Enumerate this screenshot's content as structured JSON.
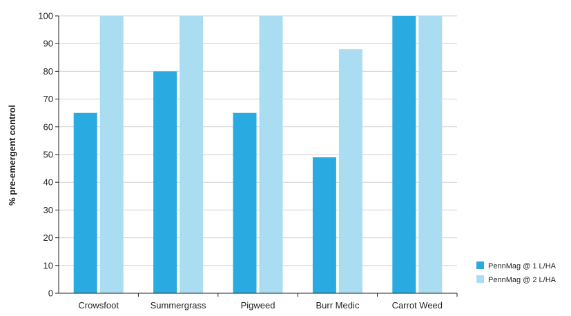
{
  "chart_data": {
    "type": "bar",
    "title": "",
    "xlabel": "",
    "ylabel": "% pre-emergent control",
    "categories": [
      "Crowsfoot",
      "Summergrass",
      "Pigweed",
      "Burr Medic",
      "Carrot Weed"
    ],
    "series": [
      {
        "name": "PennMag @ 1 L/HA",
        "color": "#29abe2",
        "values": [
          65,
          80,
          65,
          49,
          100
        ]
      },
      {
        "name": "PennMag @ 2 L/HA",
        "color": "#aadcf2",
        "values": [
          100,
          100,
          100,
          88,
          100
        ]
      }
    ],
    "ylim": [
      0,
      100
    ],
    "yticks": [
      0,
      10,
      20,
      30,
      40,
      50,
      60,
      70,
      80,
      90,
      100
    ],
    "grid": true,
    "legend_position": "bottom-right"
  }
}
